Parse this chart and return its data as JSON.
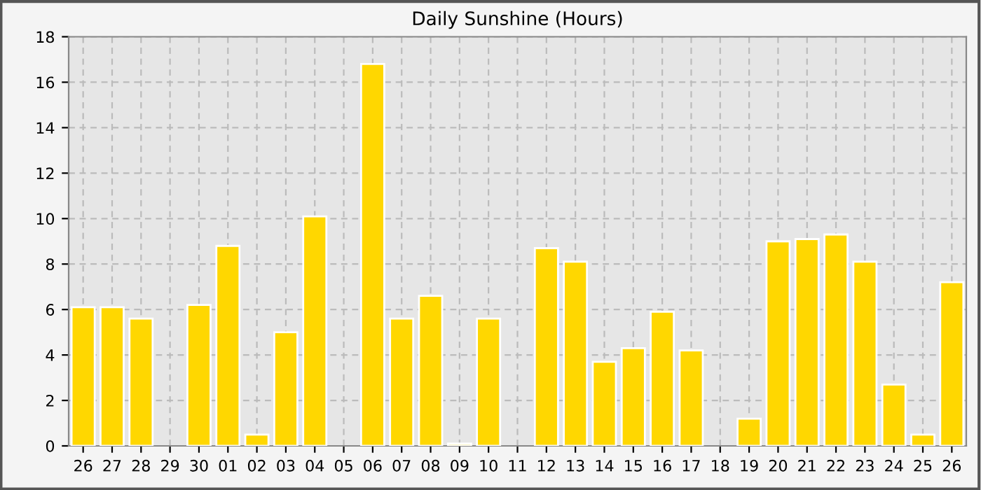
{
  "chart_data": {
    "type": "bar",
    "title": "Daily Sunshine (Hours)",
    "categories": [
      "26",
      "27",
      "28",
      "29",
      "30",
      "01",
      "02",
      "03",
      "04",
      "05",
      "06",
      "07",
      "08",
      "09",
      "10",
      "11",
      "12",
      "13",
      "14",
      "15",
      "16",
      "17",
      "18",
      "19",
      "20",
      "21",
      "22",
      "23",
      "24",
      "25",
      "26"
    ],
    "values": [
      6.1,
      6.1,
      5.6,
      0,
      6.2,
      8.8,
      0.5,
      5.0,
      10.1,
      0,
      16.8,
      5.6,
      6.6,
      0.1,
      5.6,
      0,
      8.7,
      8.1,
      3.7,
      4.3,
      5.9,
      4.2,
      0,
      1.2,
      9.0,
      9.1,
      9.3,
      8.1,
      2.7,
      0.5,
      7.2
    ],
    "color": "#ffd700",
    "ylim": [
      0,
      18
    ],
    "yticks": [
      0,
      2,
      4,
      6,
      8,
      10,
      12,
      14,
      16,
      18
    ],
    "grid": true
  }
}
